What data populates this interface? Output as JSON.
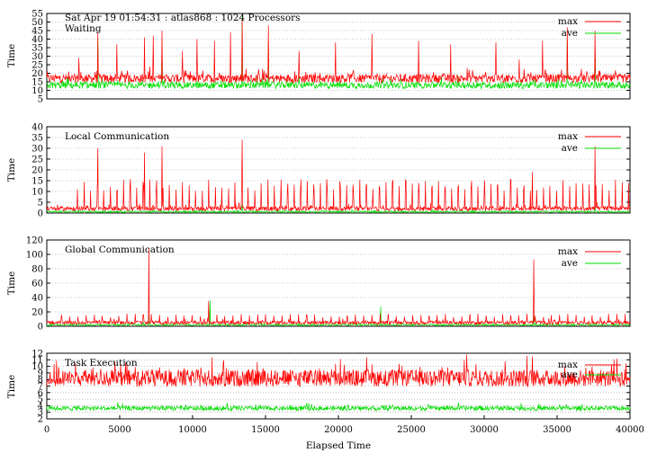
{
  "chart_data": [
    {
      "type": "line",
      "title": "Sat Apr 19 01:54:31 : atlas868 : 1024 Processors",
      "subtitle": "Waiting",
      "xlabel": "",
      "ylabel": "Time",
      "xlim": [
        0,
        40000
      ],
      "ylim": [
        5,
        55
      ],
      "yticks": [
        5,
        10,
        15,
        20,
        25,
        30,
        35,
        40,
        45,
        50,
        55
      ],
      "grid": true,
      "legend": "top-right",
      "series": [
        {
          "name": "max",
          "color": "#ff0000",
          "baseline": 17,
          "noise": 2.5,
          "spikes": [
            [
              2200,
              29
            ],
            [
              3500,
              44
            ],
            [
              4800,
              37
            ],
            [
              6700,
              41
            ],
            [
              7300,
              42
            ],
            [
              7900,
              45
            ],
            [
              9300,
              33
            ],
            [
              10300,
              40
            ],
            [
              11500,
              39
            ],
            [
              12600,
              44
            ],
            [
              13400,
              52
            ],
            [
              15200,
              48
            ],
            [
              17300,
              33
            ],
            [
              19800,
              38
            ],
            [
              22300,
              43
            ],
            [
              25500,
              39
            ],
            [
              27700,
              37
            ],
            [
              30800,
              38
            ],
            [
              32400,
              28
            ],
            [
              34000,
              39
            ],
            [
              35700,
              47
            ],
            [
              37600,
              45
            ]
          ]
        },
        {
          "name": "ave",
          "color": "#00dd00",
          "baseline": 13,
          "noise": 2.0,
          "spikes": [
            [
              3500,
              41
            ],
            [
              7900,
              37
            ],
            [
              13400,
              54
            ],
            [
              15200,
              38
            ],
            [
              35700,
              40
            ],
            [
              37600,
              36
            ]
          ]
        }
      ]
    },
    {
      "type": "line",
      "title": "Local Communication",
      "xlabel": "",
      "ylabel": "Time",
      "xlim": [
        0,
        40000
      ],
      "ylim": [
        0,
        40
      ],
      "yticks": [
        0,
        5,
        10,
        15,
        20,
        25,
        30,
        35,
        40
      ],
      "grid": true,
      "legend": "top-right",
      "series": [
        {
          "name": "max",
          "color": "#ff0000",
          "baseline": 2,
          "noise": 1.0,
          "periodic": {
            "start": 2100,
            "period": 450,
            "height": 11
          },
          "spikes": [
            [
              3500,
              30
            ],
            [
              6700,
              28
            ],
            [
              7900,
              31
            ],
            [
              13400,
              34
            ],
            [
              33300,
              19
            ],
            [
              37600,
              31
            ]
          ]
        },
        {
          "name": "ave",
          "color": "#00dd00",
          "baseline": 0.6,
          "noise": 0.4,
          "spikes": [
            [
              13400,
              4
            ],
            [
              37600,
              3
            ]
          ]
        }
      ]
    },
    {
      "type": "line",
      "title": "Global Communication",
      "xlabel": "",
      "ylabel": "Time",
      "xlim": [
        0,
        40000
      ],
      "ylim": [
        0,
        120
      ],
      "yticks": [
        0,
        20,
        40,
        60,
        80,
        100,
        120
      ],
      "grid": true,
      "legend": "top-right",
      "series": [
        {
          "name": "max",
          "color": "#ff0000",
          "baseline": 5,
          "noise": 2.5,
          "periodic": {
            "start": 1000,
            "period": 560,
            "height": 10
          },
          "spikes": [
            [
              7000,
              108
            ],
            [
              11100,
              35
            ],
            [
              33400,
              93
            ]
          ]
        },
        {
          "name": "ave",
          "color": "#00dd00",
          "baseline": 2,
          "noise": 1.2,
          "spikes": [
            [
              11200,
              36
            ],
            [
              22900,
              28
            ],
            [
              7000,
              16
            ],
            [
              33400,
              15
            ]
          ]
        }
      ]
    },
    {
      "type": "line",
      "title": "Task Execution",
      "xlabel": "Elapsed Time",
      "ylabel": "Time",
      "xlim": [
        0,
        40000
      ],
      "ylim": [
        2,
        12
      ],
      "yticks": [
        2,
        3,
        4,
        5,
        6,
        7,
        8,
        9,
        10,
        11,
        12
      ],
      "xticks": [
        0,
        5000,
        10000,
        15000,
        20000,
        25000,
        30000,
        35000,
        40000
      ],
      "grid": true,
      "legend": "top-right",
      "series": [
        {
          "name": "max",
          "color": "#ff0000",
          "baseline": 8.2,
          "noise": 1.3,
          "spikes": [
            [
              28800,
              11.8
            ],
            [
              33300,
              11.5
            ]
          ]
        },
        {
          "name": "ave",
          "color": "#00dd00",
          "baseline": 3.6,
          "noise": 0.35,
          "spikes": []
        }
      ]
    }
  ]
}
